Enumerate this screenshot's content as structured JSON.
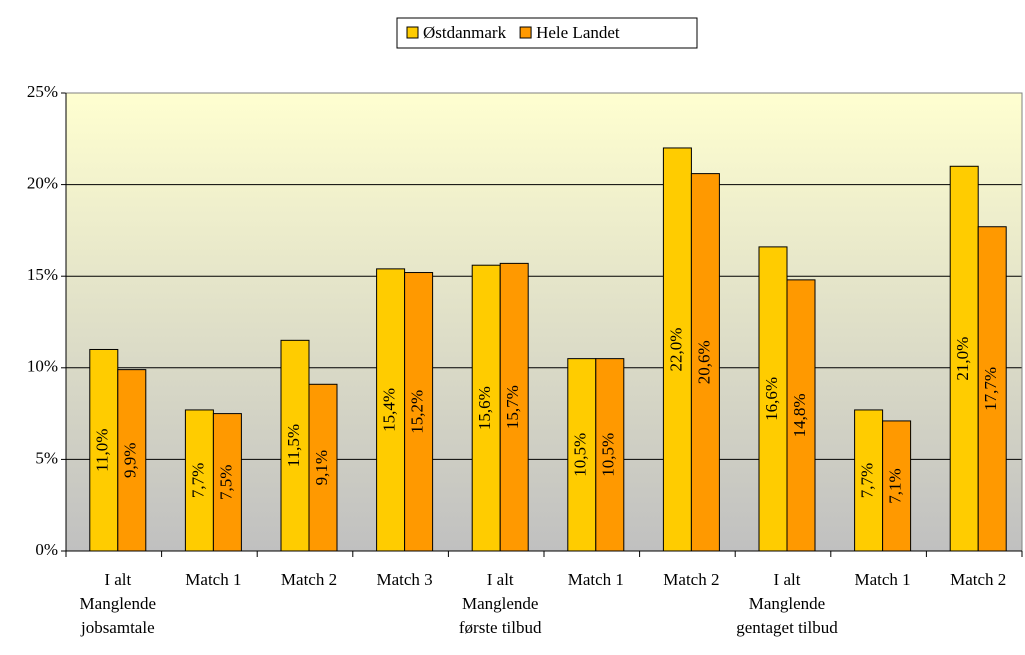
{
  "chart_data": {
    "type": "bar",
    "categories": [
      [
        "I alt",
        "Manglende",
        "jobsamtale"
      ],
      [
        "Match 1"
      ],
      [
        "Match 2"
      ],
      [
        "Match 3"
      ],
      [
        "I alt",
        "Manglende",
        "første tilbud"
      ],
      [
        "Match 1"
      ],
      [
        "Match 2"
      ],
      [
        "I alt",
        "Manglende",
        "gentaget tilbud"
      ],
      [
        "Match 1"
      ],
      [
        "Match 2"
      ]
    ],
    "series": [
      {
        "name": "Østdanmark",
        "color": "#ffcc00",
        "values": [
          11.0,
          7.7,
          11.5,
          15.4,
          15.6,
          10.5,
          22.0,
          16.6,
          7.7,
          21.0
        ],
        "value_labels": [
          "11,0%",
          "7,7%",
          "11,5%",
          "15,4%",
          "15,6%",
          "10,5%",
          "22,0%",
          "16,6%",
          "7,7%",
          "21,0%"
        ]
      },
      {
        "name": "Hele Landet",
        "color": "#ff9900",
        "values": [
          9.9,
          7.5,
          9.1,
          15.2,
          15.7,
          10.5,
          20.6,
          14.8,
          7.1,
          17.7
        ],
        "value_labels": [
          "9,9%",
          "7,5%",
          "9,1%",
          "15,2%",
          "15,7%",
          "10,5%",
          "20,6%",
          "14,8%",
          "7,1%",
          "17,7%"
        ]
      }
    ],
    "ylim": [
      0,
      25
    ],
    "yticks": [
      {
        "value": 0,
        "label": "0%"
      },
      {
        "value": 5,
        "label": "5%"
      },
      {
        "value": 10,
        "label": "10%"
      },
      {
        "value": 15,
        "label": "15%"
      },
      {
        "value": 20,
        "label": "20%"
      },
      {
        "value": 25,
        "label": "25%"
      }
    ],
    "grid": true,
    "legend": "top"
  }
}
